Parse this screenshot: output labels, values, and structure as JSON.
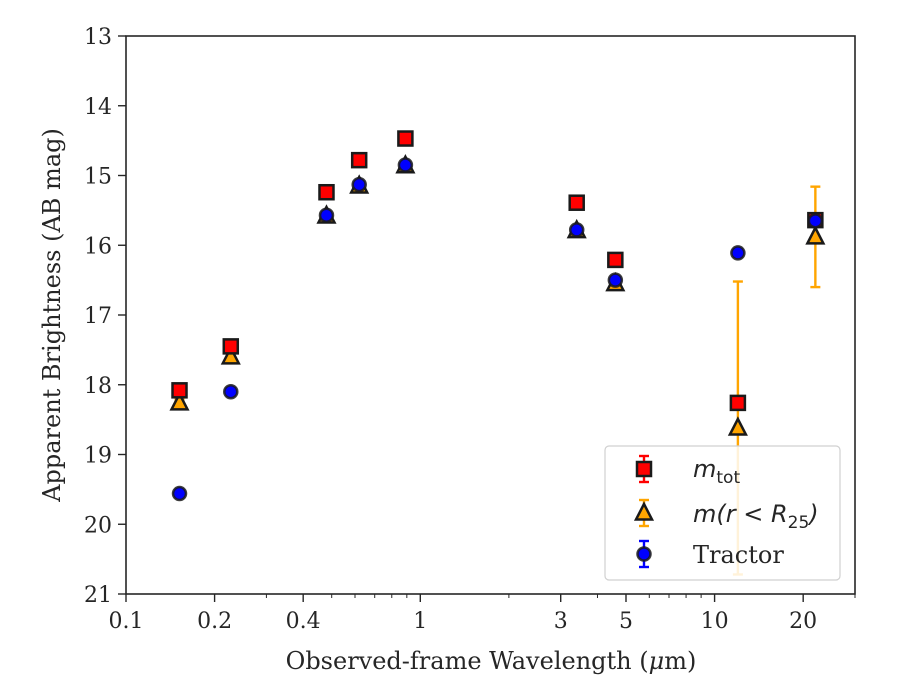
{
  "chart_data": {
    "type": "scatter",
    "xlabel": "Observed-frame Wavelength (",
    "xlabel_unit": "μ",
    "xlabel_unit_rest": "m)",
    "ylabel": "Apparent Brightness (AB mag)",
    "xscale": "log",
    "xlim": [
      0.1,
      30
    ],
    "ylim": [
      21,
      13
    ],
    "y_inverted": true,
    "x_ticks": [
      {
        "value": 0.1,
        "label": "0.1"
      },
      {
        "value": 0.2,
        "label": "0.2"
      },
      {
        "value": 0.4,
        "label": "0.4"
      },
      {
        "value": 1,
        "label": "1"
      },
      {
        "value": 3,
        "label": "3"
      },
      {
        "value": 5,
        "label": "5"
      },
      {
        "value": 10,
        "label": "10"
      },
      {
        "value": 20,
        "label": "20"
      }
    ],
    "y_ticks": [
      {
        "value": 13,
        "label": "13"
      },
      {
        "value": 14,
        "label": "14"
      },
      {
        "value": 15,
        "label": "15"
      },
      {
        "value": 16,
        "label": "16"
      },
      {
        "value": 17,
        "label": "17"
      },
      {
        "value": 18,
        "label": "18"
      },
      {
        "value": 19,
        "label": "19"
      },
      {
        "value": 20,
        "label": "20"
      },
      {
        "value": 21,
        "label": "21"
      }
    ],
    "legend_position": "bottom-right",
    "series": [
      {
        "key": "mtot",
        "legend_base": "m",
        "legend_sub": "tot",
        "marker": "square",
        "color": "#ff0000",
        "edge": "#1a1a1a",
        "error_color": "#ff0000",
        "points": [
          {
            "x": 0.152,
            "y": 18.08,
            "err": 0.06
          },
          {
            "x": 0.227,
            "y": 17.45,
            "err": 0.05
          },
          {
            "x": 0.48,
            "y": 15.24,
            "err": 0.03
          },
          {
            "x": 0.62,
            "y": 14.78,
            "err": 0.03
          },
          {
            "x": 0.89,
            "y": 14.47,
            "err": 0.03
          },
          {
            "x": 3.4,
            "y": 15.39,
            "err": 0.03
          },
          {
            "x": 4.6,
            "y": 16.21,
            "err": 0.04
          },
          {
            "x": 12.0,
            "y": 18.26,
            "err": 0.05
          },
          {
            "x": 22.0,
            "y": 15.64,
            "err": 0.05
          }
        ]
      },
      {
        "key": "mr25",
        "legend_base": "m(r < R",
        "legend_sub": "25",
        "legend_tail": ")",
        "marker": "triangle",
        "color": "#ffa500",
        "edge": "#1a1a1a",
        "error_color": "#ffa500",
        "points": [
          {
            "x": 0.152,
            "y": 18.26,
            "err": 0.05
          },
          {
            "x": 0.227,
            "y": 17.6,
            "err": 0.05
          },
          {
            "x": 0.48,
            "y": 15.58,
            "err": 0.03
          },
          {
            "x": 0.62,
            "y": 15.15,
            "err": 0.03
          },
          {
            "x": 0.89,
            "y": 14.86,
            "err": 0.03
          },
          {
            "x": 3.4,
            "y": 15.79,
            "err": 0.03
          },
          {
            "x": 4.6,
            "y": 16.55,
            "err": 0.04
          },
          {
            "x": 12.0,
            "y": 18.62,
            "err": 2.1
          },
          {
            "x": 22.0,
            "y": 15.88,
            "err": 0.72
          }
        ]
      },
      {
        "key": "tractor",
        "legend_base": "Tractor",
        "marker": "circle",
        "color": "#0000ff",
        "edge": "#1a1a1a",
        "error_color": "#0000ff",
        "points": [
          {
            "x": 0.152,
            "y": 19.56,
            "err": 0.05
          },
          {
            "x": 0.227,
            "y": 18.1,
            "err": 0.05
          },
          {
            "x": 0.48,
            "y": 15.57,
            "err": 0.03
          },
          {
            "x": 0.62,
            "y": 15.13,
            "err": 0.03
          },
          {
            "x": 0.89,
            "y": 14.85,
            "err": 0.03
          },
          {
            "x": 3.4,
            "y": 15.78,
            "err": 0.03
          },
          {
            "x": 4.6,
            "y": 16.5,
            "err": 0.04
          },
          {
            "x": 12.0,
            "y": 16.11,
            "err": 0.05
          },
          {
            "x": 22.0,
            "y": 15.65,
            "err": 0.05
          }
        ]
      }
    ]
  }
}
